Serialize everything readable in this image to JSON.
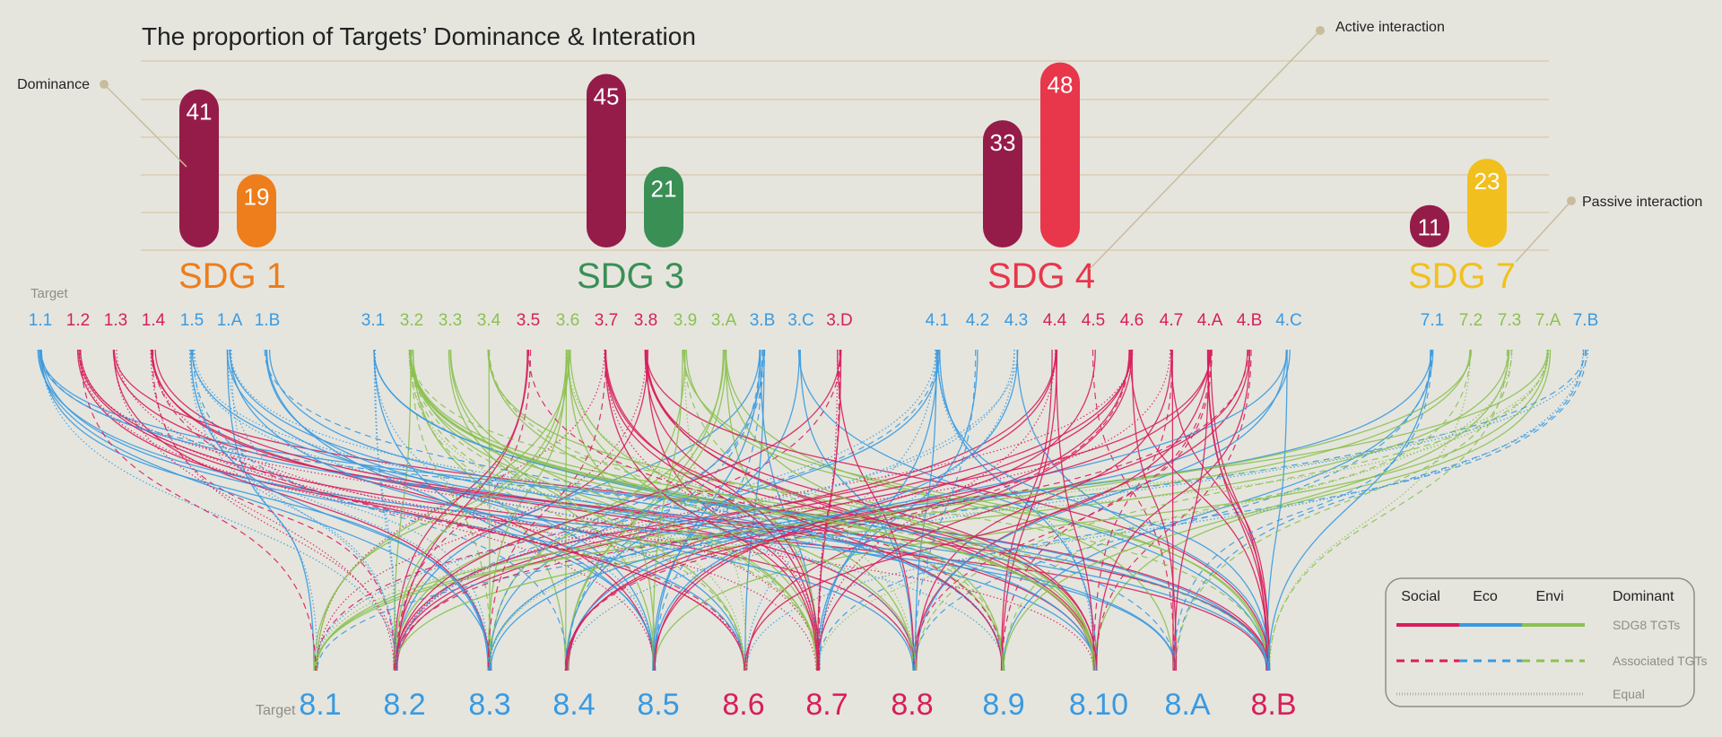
{
  "colors": {
    "background": "#e5e5de",
    "social": "#d81e5b",
    "eco": "#3a9ae0",
    "envi": "#8cc152",
    "dominance_bar": "#951c49",
    "grid": "#dcc8a8",
    "callout": "#c9bc9c",
    "muted_text": "#8e8e86",
    "legend_border": "#8e8e86"
  },
  "chart_data": {
    "type": "bar",
    "title": "The proportion of Targets’ Dominance & Interation",
    "annotations": {
      "dominance": "Dominance",
      "active": "Active interaction",
      "passive": "Passive interaction"
    },
    "groups": [
      {
        "label": "SDG 1",
        "color": "#ee7d1b",
        "dominance": 41,
        "interaction": 19,
        "interaction_color": "#ee7d1b"
      },
      {
        "label": "SDG 3",
        "color": "#3a8f55",
        "dominance": 45,
        "interaction": 21,
        "interaction_color": "#3a8f55"
      },
      {
        "label": "SDG 4",
        "color": "#e8364a",
        "dominance": 33,
        "interaction": 48,
        "interaction_color": "#e8364a"
      },
      {
        "label": "SDG 7",
        "color": "#f2c01e",
        "dominance": 11,
        "interaction": 23,
        "interaction_color": "#f2c01e"
      }
    ],
    "ylim": [
      0,
      50
    ],
    "grid": true,
    "target_axis_label": "Target",
    "top_targets": [
      {
        "id": "1.1",
        "cat": "eco"
      },
      {
        "id": "1.2",
        "cat": "social"
      },
      {
        "id": "1.3",
        "cat": "social"
      },
      {
        "id": "1.4",
        "cat": "social"
      },
      {
        "id": "1.5",
        "cat": "eco"
      },
      {
        "id": "1.A",
        "cat": "eco"
      },
      {
        "id": "1.B",
        "cat": "eco"
      },
      {
        "id": "3.1",
        "cat": "eco"
      },
      {
        "id": "3.2",
        "cat": "envi"
      },
      {
        "id": "3.3",
        "cat": "envi"
      },
      {
        "id": "3.4",
        "cat": "envi"
      },
      {
        "id": "3.5",
        "cat": "social"
      },
      {
        "id": "3.6",
        "cat": "envi"
      },
      {
        "id": "3.7",
        "cat": "social"
      },
      {
        "id": "3.8",
        "cat": "social"
      },
      {
        "id": "3.9",
        "cat": "envi"
      },
      {
        "id": "3.A",
        "cat": "envi"
      },
      {
        "id": "3.B",
        "cat": "eco"
      },
      {
        "id": "3.C",
        "cat": "eco"
      },
      {
        "id": "3.D",
        "cat": "social"
      },
      {
        "id": "4.1",
        "cat": "eco"
      },
      {
        "id": "4.2",
        "cat": "eco"
      },
      {
        "id": "4.3",
        "cat": "eco"
      },
      {
        "id": "4.4",
        "cat": "social"
      },
      {
        "id": "4.5",
        "cat": "social"
      },
      {
        "id": "4.6",
        "cat": "social"
      },
      {
        "id": "4.7",
        "cat": "social"
      },
      {
        "id": "4.A",
        "cat": "social"
      },
      {
        "id": "4.B",
        "cat": "social"
      },
      {
        "id": "4.C",
        "cat": "eco"
      },
      {
        "id": "7.1",
        "cat": "eco"
      },
      {
        "id": "7.2",
        "cat": "envi"
      },
      {
        "id": "7.3",
        "cat": "envi"
      },
      {
        "id": "7.A",
        "cat": "envi"
      },
      {
        "id": "7.B",
        "cat": "eco"
      }
    ],
    "bottom_targets": [
      {
        "id": "8.1",
        "cat": "eco"
      },
      {
        "id": "8.2",
        "cat": "eco"
      },
      {
        "id": "8.3",
        "cat": "eco"
      },
      {
        "id": "8.4",
        "cat": "eco"
      },
      {
        "id": "8.5",
        "cat": "eco"
      },
      {
        "id": "8.6",
        "cat": "social"
      },
      {
        "id": "8.7",
        "cat": "social"
      },
      {
        "id": "8.8",
        "cat": "social"
      },
      {
        "id": "8.9",
        "cat": "eco"
      },
      {
        "id": "8.10",
        "cat": "eco"
      },
      {
        "id": "8.A",
        "cat": "eco"
      },
      {
        "id": "8.B",
        "cat": "social"
      }
    ],
    "legend": {
      "columns": [
        "Social",
        "Eco",
        "Envi",
        "Dominant"
      ],
      "rows": [
        "SDG8 TGTs",
        "Associated TGTs",
        "Equal"
      ]
    }
  }
}
